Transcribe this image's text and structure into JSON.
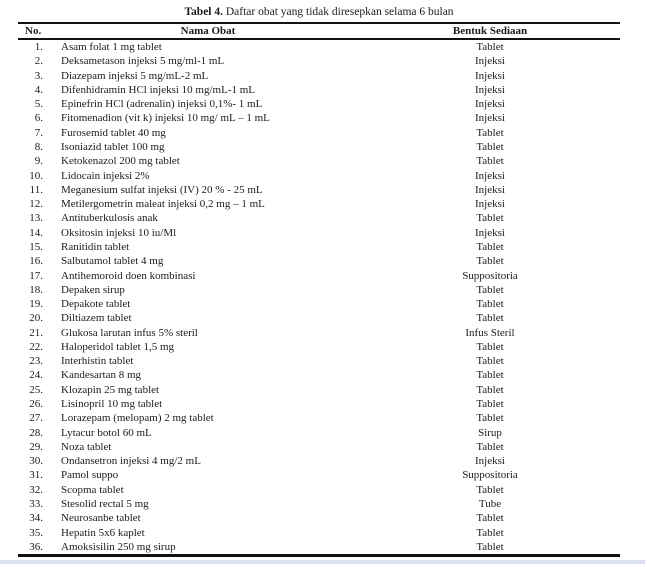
{
  "page": {
    "title_bold": "Tabel 4.",
    "title_rest": " Daftar obat yang tidak diresepkan selama 6 bulan",
    "bottom_edge_color": "#d8e2f0"
  },
  "table": {
    "columns": [
      "No.",
      "Nama Obat",
      "Bentuk Sediaan"
    ],
    "rows": [
      {
        "no": "1.",
        "nama": "Asam folat 1 mg tablet",
        "bentuk": "Tablet"
      },
      {
        "no": "2.",
        "nama": "Deksametason injeksi 5 mg/ml-1 mL",
        "bentuk": "Injeksi"
      },
      {
        "no": "3.",
        "nama": "Diazepam injeksi 5 mg/mL-2 mL",
        "bentuk": "Injeksi"
      },
      {
        "no": "4.",
        "nama": "Difenhidramin HCl injeksi 10 mg/mL-1 mL",
        "bentuk": "Injeksi"
      },
      {
        "no": "5.",
        "nama": "Epinefrin HCl (adrenalin) injeksi 0,1%- 1 mL",
        "bentuk": "Injeksi"
      },
      {
        "no": "6.",
        "nama": "Fitomenadion (vit k) injeksi 10 mg/ mL – 1 mL",
        "bentuk": "Injeksi"
      },
      {
        "no": "7.",
        "nama": "Furosemid tablet 40 mg",
        "bentuk": "Tablet"
      },
      {
        "no": "8.",
        "nama": "Isoniazid tablet 100 mg",
        "bentuk": "Tablet"
      },
      {
        "no": "9.",
        "nama": "Ketokenazol 200 mg tablet",
        "bentuk": "Tablet"
      },
      {
        "no": "10.",
        "nama": "Lidocain injeksi 2%",
        "bentuk": "Injeksi"
      },
      {
        "no": "11.",
        "nama": "Meganesium sulfat injeksi (IV) 20 % - 25 mL",
        "bentuk": "Injeksi"
      },
      {
        "no": "12.",
        "nama": "Metilergometrin maleat injeksi 0,2 mg – 1 mL",
        "bentuk": "Injeksi"
      },
      {
        "no": "13.",
        "nama": "Antituberkulosis anak",
        "bentuk": "Tablet"
      },
      {
        "no": "14.",
        "nama": "Oksitosin injeksi 10 iu/Ml",
        "bentuk": "Injeksi"
      },
      {
        "no": "15.",
        "nama": "Ranitidin tablet",
        "bentuk": "Tablet"
      },
      {
        "no": "16.",
        "nama": "Salbutamol tablet 4 mg",
        "bentuk": "Tablet"
      },
      {
        "no": "17.",
        "nama": "Antihemoroid doen kombinasi",
        "bentuk": "Suppositoria"
      },
      {
        "no": "18.",
        "nama": "Depaken sirup",
        "bentuk": "Tablet"
      },
      {
        "no": "19.",
        "nama": "Depakote tablet",
        "bentuk": "Tablet"
      },
      {
        "no": "20.",
        "nama": "Diltiazem tablet",
        "bentuk": "Tablet"
      },
      {
        "no": "21.",
        "nama": "Glukosa larutan infus 5% steril",
        "bentuk": "Infus Steril"
      },
      {
        "no": "22.",
        "nama": "Haloperidol tablet 1,5 mg",
        "bentuk": "Tablet"
      },
      {
        "no": "23.",
        "nama": "Interhistin tablet",
        "bentuk": "Tablet"
      },
      {
        "no": "24.",
        "nama": "Kandesartan 8 mg",
        "bentuk": "Tablet"
      },
      {
        "no": "25.",
        "nama": "Klozapin 25 mg tablet",
        "bentuk": "Tablet"
      },
      {
        "no": "26.",
        "nama": "Lisinopril 10 mg tablet",
        "bentuk": "Tablet"
      },
      {
        "no": "27.",
        "nama": "Lorazepam (melopam) 2 mg tablet",
        "bentuk": "Tablet"
      },
      {
        "no": "28.",
        "nama": "Lytacur botol 60 mL",
        "bentuk": "Sirup"
      },
      {
        "no": "29.",
        "nama": "Noza tablet",
        "bentuk": "Tablet"
      },
      {
        "no": "30.",
        "nama": "Ondansetron injeksi 4 mg/2 mL",
        "bentuk": "Injeksi"
      },
      {
        "no": "31.",
        "nama": "Pamol suppo",
        "bentuk": "Suppositoria"
      },
      {
        "no": "32.",
        "nama": "Scopma tablet",
        "bentuk": "Tablet"
      },
      {
        "no": "33.",
        "nama": "Stesolid rectal 5 mg",
        "bentuk": "Tube"
      },
      {
        "no": "34.",
        "nama": "Neurosanbe tablet",
        "bentuk": "Tablet"
      },
      {
        "no": "35.",
        "nama": "Hepatin 5x6 kaplet",
        "bentuk": "Tablet"
      },
      {
        "no": "36.",
        "nama": "Amoksisilin 250 mg sirup",
        "bentuk": "Tablet"
      }
    ]
  }
}
